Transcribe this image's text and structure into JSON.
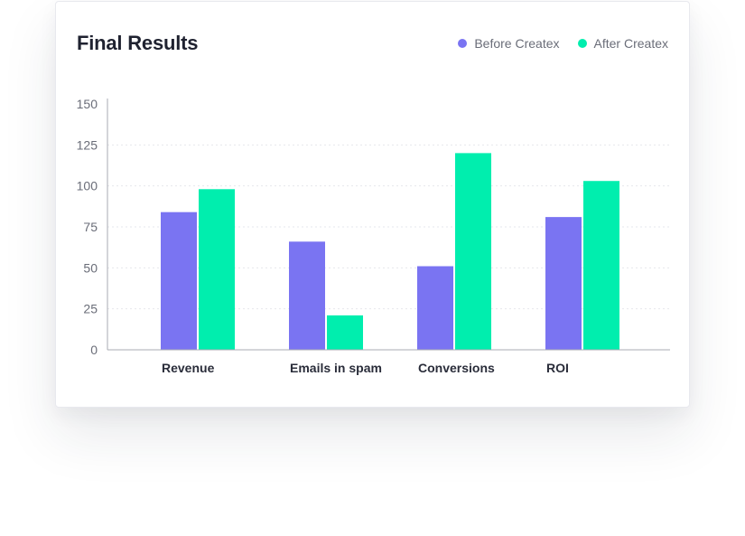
{
  "card": {
    "title": "Final Results"
  },
  "colors": {
    "before": "#7a74f2",
    "after": "#00eeae",
    "grid": "#e6e7ec",
    "axis": "#a9abb3"
  },
  "chart_data": {
    "type": "bar",
    "title": "Final Results",
    "xlabel": "",
    "ylabel": "",
    "ylim": [
      0,
      150
    ],
    "yticks": [
      "0",
      "25",
      "50",
      "75",
      "100",
      "125",
      "150"
    ],
    "categories": [
      "Revenue",
      "Emails in spam",
      "Conversions",
      "ROI"
    ],
    "series": [
      {
        "name": "Before Createx",
        "values": [
          84,
          66,
          51,
          81
        ]
      },
      {
        "name": "After Createx",
        "values": [
          98,
          21,
          120,
          103
        ]
      }
    ],
    "legend": "top-right",
    "grid": true
  }
}
